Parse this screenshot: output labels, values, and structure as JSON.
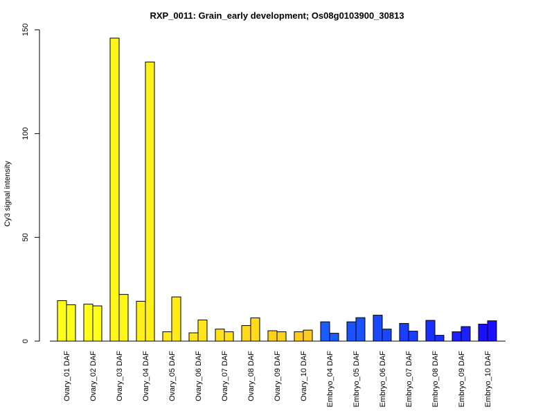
{
  "chart_data": {
    "type": "bar",
    "title": "RXP_0011: Grain_early development; Os08g0103900_30813",
    "xlabel": "",
    "ylabel": "Cy3 signal intensity",
    "ylim": [
      0,
      150
    ],
    "yticks": [
      0,
      50,
      100,
      150
    ],
    "grid": false,
    "legend": "none",
    "bars_per_group": 2,
    "categories": [
      "Ovary_01 DAF",
      "Ovary_02 DAF",
      "Ovary_03 DAF",
      "Ovary_04 DAF",
      "Ovary_05 DAF",
      "Ovary_06 DAF",
      "Ovary_07 DAF",
      "Ovary_08 DAF",
      "Ovary_09 DAF",
      "Ovary_10 DAF",
      "Embryo_04 DAF",
      "Embryo_05 DAF",
      "Embryo_06 DAF",
      "Embryo_07 DAF",
      "Embryo_08 DAF",
      "Embryo_09 DAF",
      "Embryo_10 DAF"
    ],
    "values": [
      [
        19.5,
        17.5
      ],
      [
        17.8,
        17.0
      ],
      [
        146.0,
        22.5
      ],
      [
        19.2,
        134.5
      ],
      [
        4.5,
        21.3
      ],
      [
        4.0,
        10.2
      ],
      [
        5.8,
        4.5
      ],
      [
        7.5,
        11.2
      ],
      [
        5.0,
        4.5
      ],
      [
        4.5,
        5.3
      ],
      [
        9.3,
        3.8
      ],
      [
        9.3,
        11.3
      ],
      [
        12.5,
        5.8
      ],
      [
        8.5,
        4.8
      ],
      [
        10.0,
        2.8
      ],
      [
        4.5,
        7.0
      ],
      [
        8.2,
        9.8
      ]
    ],
    "colors": [
      "#ffff19",
      "#ffff19",
      "#fff519",
      "#fff01a",
      "#ffeb1a",
      "#ffe61a",
      "#ffe01b",
      "#ffd91b",
      "#ffd31c",
      "#ffcd1c",
      "#1a5cff",
      "#1a52ff",
      "#1a48ff",
      "#1a3eff",
      "#1a30ff",
      "#1a20ff",
      "#1a10ff"
    ]
  }
}
